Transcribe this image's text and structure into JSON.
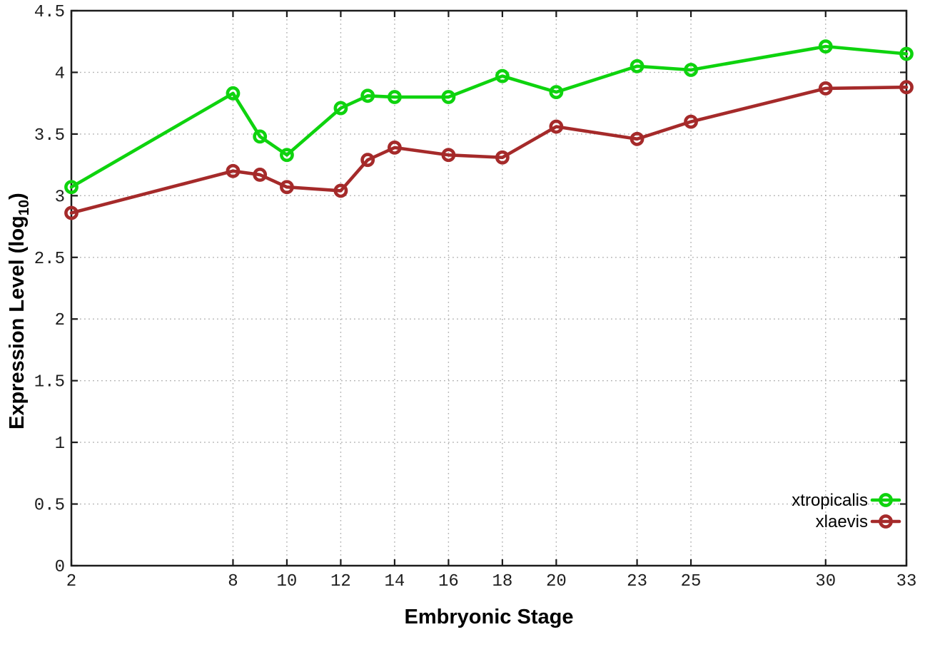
{
  "chart_data": {
    "type": "line",
    "title": "",
    "xlabel": "Embryonic Stage",
    "ylabel": "Expression Level (log10)",
    "ylabel_parts": {
      "main": "Expression Level (log",
      "sub": "10",
      "close": ")"
    },
    "x": [
      2,
      8,
      9,
      10,
      12,
      13,
      14,
      16,
      18,
      20,
      23,
      25,
      30,
      33
    ],
    "series": [
      {
        "name": "xtropicalis",
        "color": "#0ed30e",
        "marker": "open-circle",
        "values": [
          3.07,
          3.83,
          3.48,
          3.33,
          3.71,
          3.81,
          3.8,
          3.8,
          3.97,
          3.84,
          4.05,
          4.02,
          4.21,
          4.15
        ]
      },
      {
        "name": "xlaevis",
        "color": "#a52a2a",
        "marker": "open-circle",
        "values": [
          2.86,
          3.2,
          3.17,
          3.07,
          3.04,
          3.29,
          3.39,
          3.33,
          3.31,
          3.56,
          3.46,
          3.6,
          3.87,
          3.88
        ]
      }
    ],
    "xlim": [
      2,
      33
    ],
    "ylim": [
      0,
      4.5
    ],
    "xticks": [
      2,
      8,
      10,
      12,
      14,
      16,
      18,
      20,
      23,
      25,
      30,
      33
    ],
    "xtick_labels": [
      "2",
      "8",
      "10",
      "12",
      "14",
      "16",
      "18",
      "20",
      "23",
      "25",
      "30",
      "33"
    ],
    "yticks": [
      0,
      0.5,
      1,
      1.5,
      2,
      2.5,
      3,
      3.5,
      4,
      4.5
    ],
    "ytick_labels": [
      "0",
      "0.5",
      "1",
      "1.5",
      "2",
      "2.5",
      "3",
      "3.5",
      "4",
      "4.5"
    ],
    "grid": true,
    "legend_position": "inside-bottom-right"
  },
  "styles": {
    "grid_color": "#b0b0b0",
    "axis_color": "#1c1c1c",
    "tick_label_color": "#1e1e1e",
    "legend_text_color": "#000000"
  }
}
